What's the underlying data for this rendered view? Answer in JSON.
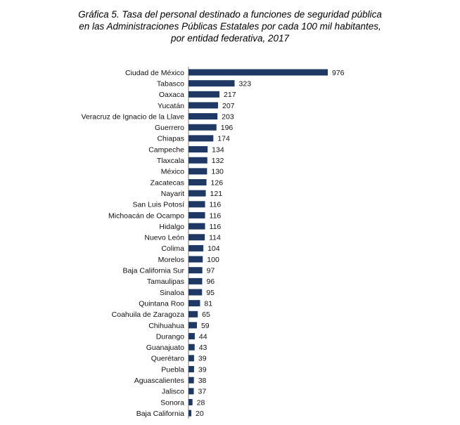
{
  "chart_data": {
    "type": "bar",
    "orientation": "horizontal",
    "title": [
      "Gráfica 5. Tasa del personal destinado a funciones de seguridad pública",
      "en las Administraciones Públicas Estatales por cada 100 mil habitantes,",
      "por entidad federativa, 2017"
    ],
    "xlabel": "",
    "ylabel": "",
    "xlim": [
      0,
      976
    ],
    "grid": false,
    "legend": false,
    "bar_color": "#1f3864",
    "categories": [
      "Ciudad de México",
      "Tabasco",
      "Oaxaca",
      "Yucatán",
      "Veracruz de Ignacio de la Llave",
      "Guerrero",
      "Chiapas",
      "Campeche",
      "Tlaxcala",
      "México",
      "Zacatecas",
      "Nayarit",
      "San Luis Potosí",
      "Michoacán de Ocampo",
      "Hidalgo",
      "Nuevo León",
      "Colima",
      "Morelos",
      "Baja California Sur",
      "Tamaulipas",
      "Sinaloa",
      "Quintana Roo",
      "Coahuila de Zaragoza",
      "Chihuahua",
      "Durango",
      "Guanajuato",
      "Querétaro",
      "Puebla",
      "Aguascalientes",
      "Jalisco",
      "Sonora",
      "Baja California"
    ],
    "values": [
      976,
      323,
      217,
      207,
      203,
      196,
      174,
      134,
      132,
      130,
      126,
      121,
      116,
      116,
      116,
      114,
      104,
      100,
      97,
      96,
      95,
      81,
      65,
      59,
      44,
      43,
      39,
      39,
      38,
      37,
      28,
      20
    ]
  }
}
